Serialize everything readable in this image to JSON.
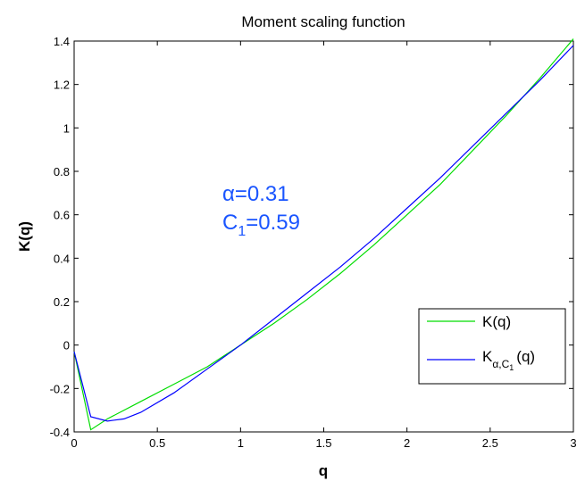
{
  "chart_data": {
    "type": "line",
    "title": "Moment scaling function",
    "xlabel": "q",
    "ylabel": "K(q)",
    "xlim": [
      0,
      3
    ],
    "ylim": [
      -0.4,
      1.4
    ],
    "xticks": [
      0,
      0.5,
      1,
      1.5,
      2,
      2.5,
      3
    ],
    "xtick_labels": [
      "0",
      "0.5",
      "1",
      "1.5",
      "2",
      "2.5",
      "3"
    ],
    "yticks": [
      -0.4,
      -0.2,
      0,
      0.2,
      0.4,
      0.6,
      0.8,
      1,
      1.2,
      1.4
    ],
    "ytick_labels": [
      "-0.4",
      "-0.2",
      "0",
      "0.2",
      "0.4",
      "0.6",
      "0.8",
      "1",
      "1.2",
      "1.4"
    ],
    "grid": false,
    "legend_position": "right",
    "series": [
      {
        "name": "K(q)",
        "color": "#00dd00",
        "x": [
          0,
          0.1,
          0.2,
          0.4,
          0.6,
          0.8,
          1.0,
          1.2,
          1.4,
          1.6,
          1.8,
          2.0,
          2.2,
          2.4,
          2.6,
          2.8,
          3.0
        ],
        "y": [
          -0.03,
          -0.39,
          -0.34,
          -0.26,
          -0.18,
          -0.1,
          0.0,
          0.1,
          0.21,
          0.33,
          0.46,
          0.6,
          0.74,
          0.9,
          1.06,
          1.23,
          1.41
        ]
      },
      {
        "name": "K_{α,C_1}(q)",
        "color": "#0000ff",
        "x": [
          0,
          0.1,
          0.2,
          0.3,
          0.4,
          0.6,
          0.8,
          1.0,
          1.2,
          1.4,
          1.6,
          1.8,
          2.0,
          2.2,
          2.4,
          2.6,
          2.8,
          3.0
        ],
        "y": [
          -0.03,
          -0.33,
          -0.35,
          -0.34,
          -0.31,
          -0.22,
          -0.11,
          0.0,
          0.12,
          0.24,
          0.36,
          0.49,
          0.63,
          0.77,
          0.92,
          1.07,
          1.22,
          1.38
        ]
      }
    ],
    "legend": {
      "entries": [
        {
          "label": "K(q)",
          "color": "#00dd00"
        },
        {
          "label_main": "K",
          "label_sub1": "α,C",
          "label_sub2": "1",
          "label_tail": "(q)",
          "color": "#0000ff"
        }
      ]
    },
    "annotations": {
      "color": "#1a55ff",
      "alpha_text": "α=0.31",
      "c_letter": "C",
      "c_sub": "1",
      "c_value": "=0.59"
    }
  }
}
